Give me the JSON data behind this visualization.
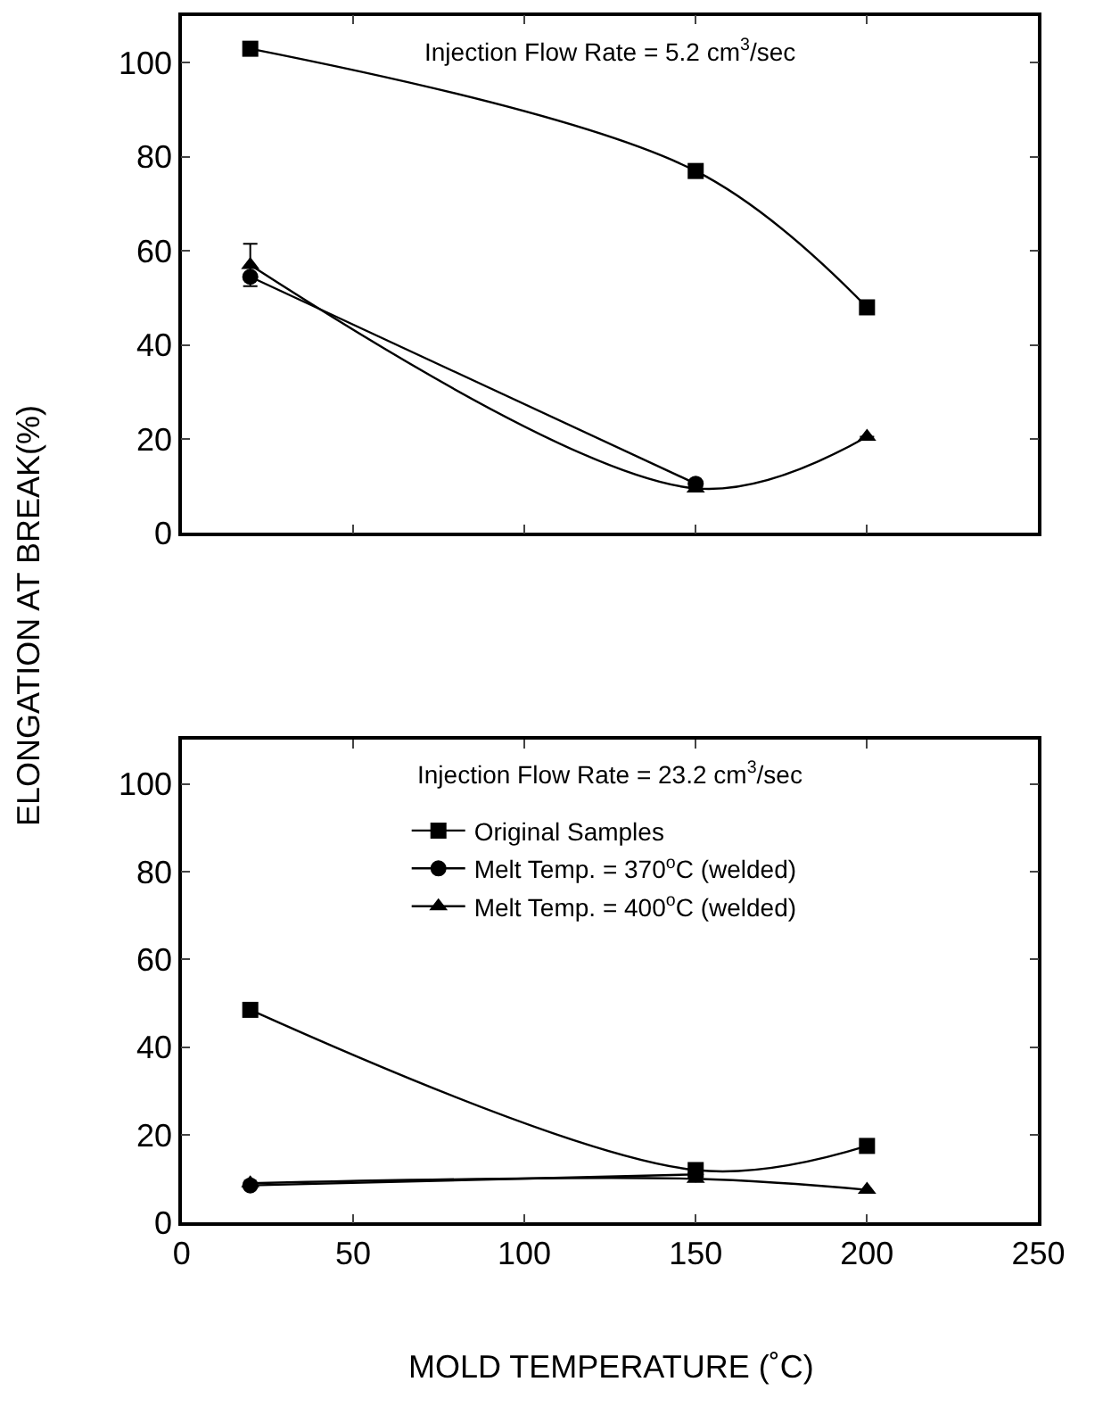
{
  "chart_data": [
    {
      "type": "line",
      "title": "Injection Flow Rate = 5.2 cm$^{3}$/sec",
      "ylabel": "ELONGATION AT BREAK(%)",
      "x": [
        20,
        150,
        200
      ],
      "xlim": [
        0,
        250
      ],
      "xticks": [
        0,
        50,
        100,
        150,
        200,
        250
      ],
      "ylim": [
        0,
        110
      ],
      "yticks": [
        0,
        20,
        40,
        60,
        80,
        100
      ],
      "tick_labels": "y",
      "legend": false,
      "line_style": "solid",
      "series": [
        {
          "color": "#000000",
          "marker": "square",
          "values": [
            103,
            77,
            48
          ]
        },
        {
          "color": "#000000",
          "marker": "circle",
          "values": [
            54.5,
            10.5,
            null
          ]
        },
        {
          "color": "#000000",
          "marker": "triangle",
          "values": [
            57,
            9.5,
            20.5
          ],
          "errors": [
            4.5,
            null,
            null
          ]
        }
      ]
    },
    {
      "type": "line",
      "title": "Injection Flow Rate = 23.2 cm$^{3}$/sec",
      "xlabel": "MOLD TEMPERATURE (˚C)",
      "x": [
        20,
        150,
        200
      ],
      "xlim": [
        0,
        250
      ],
      "xticks": [
        0,
        50,
        100,
        150,
        200,
        250
      ],
      "ylim": [
        0,
        110
      ],
      "yticks": [
        0,
        20,
        40,
        60,
        80,
        100
      ],
      "legend": "top",
      "line_style": "solid",
      "series": [
        {
          "name": "Original Samples",
          "color": "#000000",
          "marker": "square",
          "values": [
            48.5,
            12,
            17.5
          ]
        },
        {
          "name": "Melt Temp. = 370$^{o}$C (welded)",
          "color": "#000000",
          "marker": "circle",
          "values": [
            8.5,
            11,
            null
          ]
        },
        {
          "name": "Melt Temp. = 400$^{o}$C (welded)",
          "color": "#000000",
          "marker": "triangle",
          "values": [
            9,
            10,
            7.5
          ]
        }
      ]
    }
  ]
}
